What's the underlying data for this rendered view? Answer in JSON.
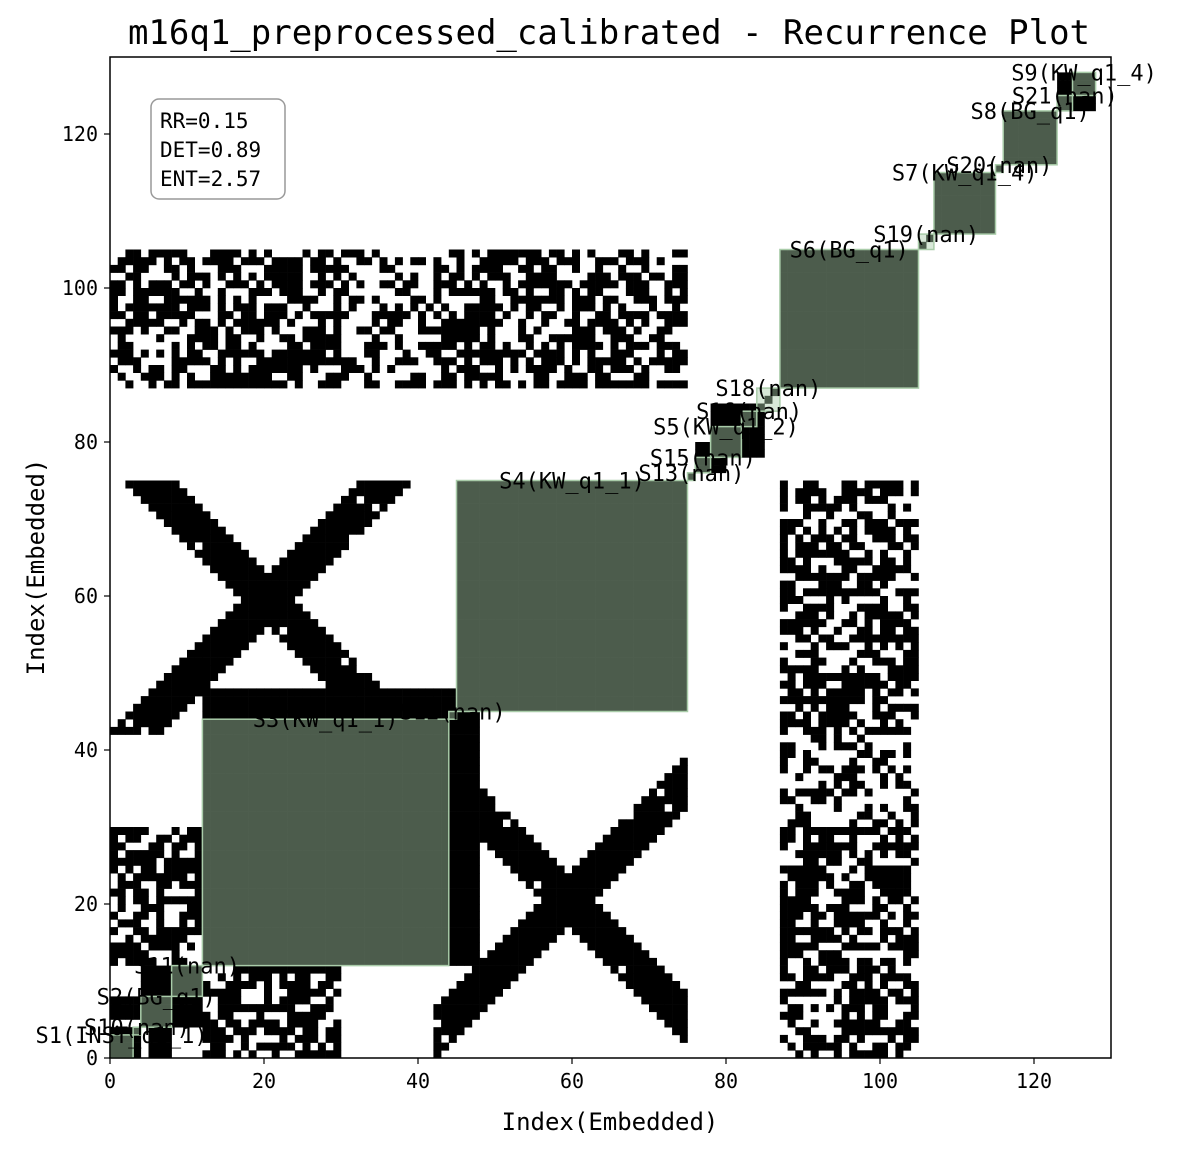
{
  "chart_data": {
    "type": "heatmap",
    "title": "m16q1_preprocessed_calibrated - Recurrence Plot",
    "xlabel": "Index(Embedded)",
    "ylabel": "Index(Embedded)",
    "xlim": [
      0,
      130
    ],
    "ylim": [
      0,
      130
    ],
    "xticks": [
      0,
      20,
      40,
      60,
      80,
      100,
      120
    ],
    "yticks": [
      0,
      20,
      40,
      60,
      80,
      100,
      120
    ],
    "stats": [
      "RR=0.15",
      "DET=0.89",
      "ENT=2.57"
    ],
    "colors": {
      "recurrence": "#000000",
      "segment_fill": "#a9cca9",
      "background": "#ffffff"
    },
    "segments": [
      {
        "label": "S1(INST_q1_1)",
        "start": 0,
        "end": 3
      },
      {
        "label": "S10(nan)",
        "start": 3,
        "end": 4
      },
      {
        "label": "S2(BG_q1)",
        "start": 4,
        "end": 8
      },
      {
        "label": "S11(nan)",
        "start": 8,
        "end": 12
      },
      {
        "label": "S3(KW_q1_1)",
        "start": 12,
        "end": 44
      },
      {
        "label": "S12(nan)",
        "start": 44,
        "end": 45
      },
      {
        "label": "S4(KW_q1_1)",
        "start": 45,
        "end": 75
      },
      {
        "label": "S13(nan)",
        "start": 75,
        "end": 76
      },
      {
        "label": "S15(nan)",
        "start": 76,
        "end": 78
      },
      {
        "label": "S5(KW_q1_2)",
        "start": 78,
        "end": 82
      },
      {
        "label": "S16(nan)",
        "start": 82,
        "end": 84
      },
      {
        "label": "S18(nan)",
        "start": 84,
        "end": 87
      },
      {
        "label": "S6(BG_q1)",
        "start": 87,
        "end": 105
      },
      {
        "label": "S19(nan)",
        "start": 105,
        "end": 107
      },
      {
        "label": "S7(KW_q1_4)",
        "start": 107,
        "end": 115
      },
      {
        "label": "S20(nan)",
        "start": 115,
        "end": 116
      },
      {
        "label": "S8(BG_q1)",
        "start": 116,
        "end": 123
      },
      {
        "label": "S21(nan)",
        "start": 123,
        "end": 125
      },
      {
        "label": "S9(KW_q1_4)",
        "start": 125,
        "end": 128
      }
    ],
    "recurrence_blocks": [
      [
        0,
        0,
        4,
        4
      ],
      [
        4,
        4,
        8,
        8
      ],
      [
        8,
        8,
        12,
        12
      ],
      [
        12,
        12,
        44,
        44
      ],
      [
        45,
        45,
        75,
        75
      ],
      [
        76,
        76,
        80,
        80
      ],
      [
        78,
        78,
        85,
        85
      ],
      [
        87,
        87,
        105,
        105
      ],
      [
        107,
        107,
        115,
        115
      ],
      [
        116,
        116,
        123,
        123
      ],
      [
        123,
        123,
        128,
        128
      ],
      [
        4,
        8,
        8,
        12
      ],
      [
        8,
        4,
        12,
        8
      ],
      [
        0,
        5,
        4,
        8
      ],
      [
        5,
        0,
        8,
        4
      ],
      [
        12,
        35,
        45,
        48
      ],
      [
        35,
        12,
        48,
        45
      ],
      [
        20,
        58,
        24,
        62
      ],
      [
        58,
        20,
        62,
        24
      ]
    ],
    "cross_blocks": [
      {
        "cx": 20,
        "cy": 59,
        "range_x": [
          0,
          45
        ],
        "range_y": [
          42,
          75
        ]
      },
      {
        "cx": 59,
        "cy": 20,
        "range_x": [
          45,
          75
        ],
        "range_y": [
          0,
          30
        ]
      },
      {
        "cx": 20,
        "cy": 20,
        "range_x": [
          12,
          30
        ],
        "range_y": [
          12,
          30
        ]
      },
      {
        "cx": 59,
        "cy": 59,
        "range_x": [
          45,
          75
        ],
        "range_y": [
          45,
          75
        ]
      }
    ],
    "off_diagonal_bands": [
      {
        "x": [
          0,
          12
        ],
        "y": [
          12,
          30
        ]
      },
      {
        "x": [
          12,
          30
        ],
        "y": [
          0,
          12
        ]
      },
      {
        "x": [
          87,
          105
        ],
        "y": [
          0,
          30
        ]
      },
      {
        "x": [
          0,
          30
        ],
        "y": [
          87,
          105
        ]
      },
      {
        "x": [
          87,
          105
        ],
        "y": [
          42,
          75
        ]
      },
      {
        "x": [
          42,
          75
        ],
        "y": [
          87,
          105
        ]
      },
      {
        "x": [
          0,
          45
        ],
        "y": [
          87,
          105
        ]
      },
      {
        "x": [
          45,
          75
        ],
        "y": [
          87,
          105
        ]
      },
      {
        "x": [
          87,
          105
        ],
        "y": [
          45,
          75
        ]
      }
    ]
  }
}
